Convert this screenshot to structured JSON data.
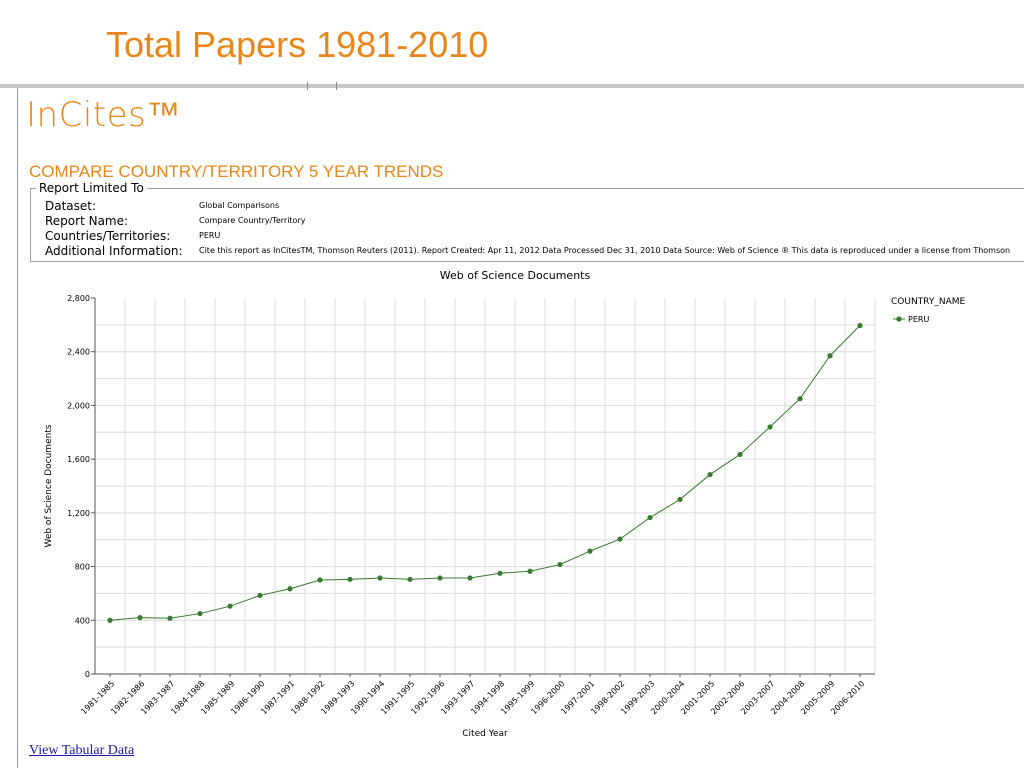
{
  "slide": {
    "title": "Total Papers 1981-2010"
  },
  "app": {
    "logo": "InCites™"
  },
  "report": {
    "heading": "COMPARE COUNTRY/TERRITORY 5 YEAR TRENDS",
    "limited_to_label": "Report Limited To",
    "fields": [
      {
        "label": "Dataset:",
        "value": "Global Comparisons"
      },
      {
        "label": "Report Name:",
        "value": "Compare Country/Territory"
      },
      {
        "label": "Countries/Territories:",
        "value": "PERU"
      },
      {
        "label": "Additional Information:",
        "value": "Cite this report as InCitesTM, Thomson Reuters (2011). Report Created: Apr 11, 2012 Data Processed Dec 31, 2010 Data Source: Web of Science ® This data is reproduced under a license from Thomson"
      }
    ]
  },
  "links": {
    "view_tabular": "View Tabular Data"
  },
  "colors": {
    "accent": "#e8861a",
    "series": "#3a7a30",
    "link": "#1a1aa6"
  },
  "chart_data": {
    "type": "line",
    "title": "Web of Science Documents",
    "xlabel": "Cited Year",
    "ylabel": "Web of Science Documents",
    "ylim": [
      0,
      2800
    ],
    "yticks": [
      "0",
      "400",
      "800",
      "1,200",
      "1,600",
      "2,000",
      "2,400",
      "2,800"
    ],
    "grid": true,
    "legend_title": "COUNTRY_NAME",
    "legend_position": "right",
    "categories": [
      "1981-1985",
      "1982-1986",
      "1983-1987",
      "1984-1988",
      "1985-1989",
      "1986-1990",
      "1987-1991",
      "1988-1992",
      "1989-1993",
      "1990-1994",
      "1991-1995",
      "1992-1996",
      "1993-1997",
      "1994-1998",
      "1995-1999",
      "1996-2000",
      "1997-2001",
      "1998-2002",
      "1999-2003",
      "2000-2004",
      "2001-2005",
      "2002-2006",
      "2003-2007",
      "2004-2008",
      "2005-2009",
      "2006-2010"
    ],
    "series": [
      {
        "name": "PERU",
        "values": [
          400,
          420,
          415,
          450,
          505,
          585,
          635,
          700,
          705,
          715,
          705,
          715,
          715,
          750,
          765,
          815,
          915,
          1005,
          1165,
          1300,
          1485,
          1635,
          1840,
          2050,
          2370,
          2595
        ]
      }
    ]
  }
}
